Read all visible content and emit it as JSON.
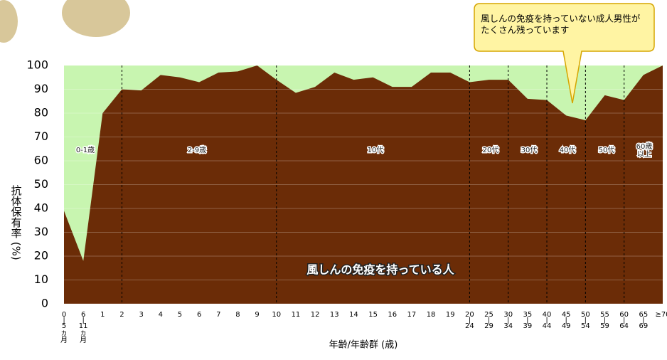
{
  "chart_data": {
    "type": "area",
    "y_label": "抗体保有率 (%)",
    "x_label": "年齢/年齢群 (歳)",
    "categories": [
      "0-5ヵ月",
      "6-11ヵ月",
      "1",
      "2",
      "3",
      "4",
      "5",
      "6",
      "7",
      "8",
      "9",
      "10",
      "11",
      "12",
      "13",
      "14",
      "15",
      "16",
      "17",
      "18",
      "19",
      "20-24",
      "25-29",
      "30-34",
      "35-39",
      "40-44",
      "45-49",
      "50-54",
      "55-59",
      "60-64",
      "65-69",
      "≥70"
    ],
    "series": [
      {
        "name": "風しんの免疫を持っている人",
        "color": "#6b2c07",
        "values": [
          39,
          18,
          80,
          90,
          89.5,
          96,
          95,
          93,
          97,
          97.5,
          100,
          94,
          88.5,
          91,
          97,
          94,
          95,
          91,
          91,
          97,
          97,
          93,
          94,
          94,
          86,
          85.5,
          79,
          77,
          87.5,
          85.5,
          96,
          100
        ]
      }
    ],
    "background_color": "#c8f5b0",
    "ylim": [
      0,
      100
    ],
    "yticks": [
      0,
      10,
      20,
      30,
      40,
      50,
      60,
      70,
      80,
      90,
      100
    ],
    "grid": true,
    "age_groups": [
      "0-1歳",
      "2-9歳",
      "10代",
      "20代",
      "30代",
      "40代",
      "50代",
      "60歳以上"
    ],
    "callout": [
      "風しんの免疫を持っていない成人男性が",
      "たくさん残っています"
    ]
  }
}
